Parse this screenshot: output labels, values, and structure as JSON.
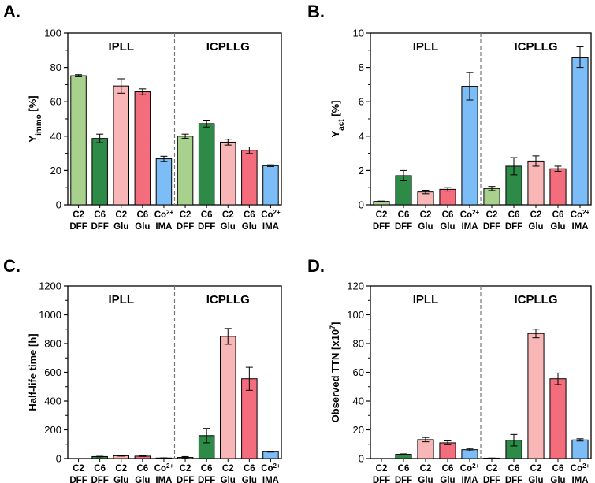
{
  "chart_data": [
    {
      "type": "bar",
      "panel_label": "A.",
      "ylabel_main": "Y",
      "ylabel_sub": "immo",
      "ylabel_unit": " [%]",
      "ylim": [
        0,
        100
      ],
      "yticks": [
        "0",
        "20",
        "40",
        "60",
        "80",
        "100"
      ],
      "groups": [
        "IPLL",
        "ICPLLG"
      ],
      "bars": [
        {
          "l1": "C2",
          "l2": "DFF",
          "l1_sup": "",
          "value": 75.2,
          "error": 0.6,
          "color": "#a9d18e"
        },
        {
          "l1": "C6",
          "l2": "DFF",
          "l1_sup": "",
          "value": 38.7,
          "error": 2.5,
          "color": "#2e8b47"
        },
        {
          "l1": "C2",
          "l2": "Glu",
          "l1_sup": "",
          "value": 69.2,
          "error": 4.2,
          "color": "#f8b6b6"
        },
        {
          "l1": "C6",
          "l2": "Glu",
          "l1_sup": "",
          "value": 65.8,
          "error": 1.7,
          "color": "#f36d7d"
        },
        {
          "l1": "Co",
          "l2": "IMA",
          "l1_sup": "2+",
          "value": 26.8,
          "error": 1.5,
          "color": "#7dbdf7"
        },
        {
          "l1": "C2",
          "l2": "DFF",
          "l1_sup": "",
          "value": 40.0,
          "error": 1.2,
          "color": "#a9d18e"
        },
        {
          "l1": "C6",
          "l2": "DFF",
          "l1_sup": "",
          "value": 47.3,
          "error": 2.0,
          "color": "#2e8b47"
        },
        {
          "l1": "C2",
          "l2": "Glu",
          "l1_sup": "",
          "value": 36.5,
          "error": 1.7,
          "color": "#f8b6b6"
        },
        {
          "l1": "C6",
          "l2": "Glu",
          "l1_sup": "",
          "value": 31.8,
          "error": 1.9,
          "color": "#f36d7d"
        },
        {
          "l1": "Co",
          "l2": "IMA",
          "l1_sup": "2+",
          "value": 22.8,
          "error": 0.5,
          "color": "#7dbdf7"
        }
      ]
    },
    {
      "type": "bar",
      "panel_label": "B.",
      "ylabel_main": "Y",
      "ylabel_sub": "act",
      "ylabel_unit": " [%]",
      "ylim": [
        0,
        10
      ],
      "yticks": [
        "0",
        "2",
        "4",
        "6",
        "8",
        "10"
      ],
      "groups": [
        "IPLL",
        "ICPLLG"
      ],
      "bars": [
        {
          "l1": "C2",
          "l2": "DFF",
          "l1_sup": "",
          "value": 0.2,
          "error": 0.02,
          "color": "#a9d18e"
        },
        {
          "l1": "C6",
          "l2": "DFF",
          "l1_sup": "",
          "value": 1.7,
          "error": 0.3,
          "color": "#2e8b47"
        },
        {
          "l1": "C2",
          "l2": "Glu",
          "l1_sup": "",
          "value": 0.75,
          "error": 0.1,
          "color": "#f8b6b6"
        },
        {
          "l1": "C6",
          "l2": "Glu",
          "l1_sup": "",
          "value": 0.9,
          "error": 0.1,
          "color": "#f36d7d"
        },
        {
          "l1": "Co",
          "l2": "IMA",
          "l1_sup": "2+",
          "value": 6.9,
          "error": 0.8,
          "color": "#7dbdf7"
        },
        {
          "l1": "C2",
          "l2": "DFF",
          "l1_sup": "",
          "value": 0.95,
          "error": 0.12,
          "color": "#a9d18e"
        },
        {
          "l1": "C6",
          "l2": "DFF",
          "l1_sup": "",
          "value": 2.25,
          "error": 0.5,
          "color": "#2e8b47"
        },
        {
          "l1": "C2",
          "l2": "Glu",
          "l1_sup": "",
          "value": 2.55,
          "error": 0.3,
          "color": "#f8b6b6"
        },
        {
          "l1": "C6",
          "l2": "Glu",
          "l1_sup": "",
          "value": 2.1,
          "error": 0.15,
          "color": "#f36d7d"
        },
        {
          "l1": "Co",
          "l2": "IMA",
          "l1_sup": "2+",
          "value": 8.6,
          "error": 0.6,
          "color": "#7dbdf7"
        }
      ]
    },
    {
      "type": "bar",
      "panel_label": "C.",
      "ylabel_main": "Half-life time [h]",
      "ylabel_sub": "",
      "ylabel_unit": "",
      "ylim": [
        0,
        1200
      ],
      "yticks": [
        "0",
        "200",
        "400",
        "600",
        "800",
        "1000",
        "1200"
      ],
      "groups": [
        "IPLL",
        "ICPLLG"
      ],
      "bars": [
        {
          "l1": "C2",
          "l2": "DFF",
          "l1_sup": "",
          "value": 0,
          "error": 0,
          "color": "#a9d18e"
        },
        {
          "l1": "C6",
          "l2": "DFF",
          "l1_sup": "",
          "value": 14,
          "error": 2,
          "color": "#2e8b47"
        },
        {
          "l1": "C2",
          "l2": "Glu",
          "l1_sup": "",
          "value": 20,
          "error": 3,
          "color": "#f8b6b6"
        },
        {
          "l1": "C6",
          "l2": "Glu",
          "l1_sup": "",
          "value": 17,
          "error": 2,
          "color": "#f36d7d"
        },
        {
          "l1": "Co",
          "l2": "IMA",
          "l1_sup": "2+",
          "value": 4,
          "error": 1,
          "color": "#7dbdf7"
        },
        {
          "l1": "C2",
          "l2": "DFF",
          "l1_sup": "",
          "value": 8,
          "error": 6,
          "color": "#a9d18e"
        },
        {
          "l1": "C6",
          "l2": "DFF",
          "l1_sup": "",
          "value": 160,
          "error": 50,
          "color": "#2e8b47"
        },
        {
          "l1": "C2",
          "l2": "Glu",
          "l1_sup": "",
          "value": 850,
          "error": 55,
          "color": "#f8b6b6"
        },
        {
          "l1": "C6",
          "l2": "Glu",
          "l1_sup": "",
          "value": 555,
          "error": 80,
          "color": "#f36d7d"
        },
        {
          "l1": "Co",
          "l2": "IMA",
          "l1_sup": "2+",
          "value": 48,
          "error": 3,
          "color": "#7dbdf7"
        }
      ]
    },
    {
      "type": "bar",
      "panel_label": "D.",
      "ylabel_main": "Observed TTN [x10",
      "ylabel_sub": "",
      "ylabel_sup": "7",
      "ylabel_unit": "]",
      "ylim": [
        0,
        120
      ],
      "yticks": [
        "0",
        "20",
        "40",
        "60",
        "80",
        "100",
        "120"
      ],
      "groups": [
        "IPLL",
        "ICPLLG"
      ],
      "bars": [
        {
          "l1": "C2",
          "l2": "DFF",
          "l1_sup": "",
          "value": 0,
          "error": 0,
          "color": "#a9d18e"
        },
        {
          "l1": "C6",
          "l2": "DFF",
          "l1_sup": "",
          "value": 3,
          "error": 0.3,
          "color": "#2e8b47"
        },
        {
          "l1": "C2",
          "l2": "Glu",
          "l1_sup": "",
          "value": 13.2,
          "error": 1.5,
          "color": "#f8b6b6"
        },
        {
          "l1": "C6",
          "l2": "Glu",
          "l1_sup": "",
          "value": 11,
          "error": 1.3,
          "color": "#f36d7d"
        },
        {
          "l1": "Co",
          "l2": "IMA",
          "l1_sup": "2+",
          "value": 6.2,
          "error": 0.8,
          "color": "#7dbdf7"
        },
        {
          "l1": "C2",
          "l2": "DFF",
          "l1_sup": "",
          "value": 0.3,
          "error": 0.1,
          "color": "#a9d18e"
        },
        {
          "l1": "C6",
          "l2": "DFF",
          "l1_sup": "",
          "value": 12.8,
          "error": 4,
          "color": "#2e8b47"
        },
        {
          "l1": "C2",
          "l2": "Glu",
          "l1_sup": "",
          "value": 87,
          "error": 3,
          "color": "#f8b6b6"
        },
        {
          "l1": "C6",
          "l2": "Glu",
          "l1_sup": "",
          "value": 55.5,
          "error": 4,
          "color": "#f36d7d"
        },
        {
          "l1": "Co",
          "l2": "IMA",
          "l1_sup": "2+",
          "value": 13,
          "error": 0.8,
          "color": "#7dbdf7"
        }
      ]
    }
  ]
}
